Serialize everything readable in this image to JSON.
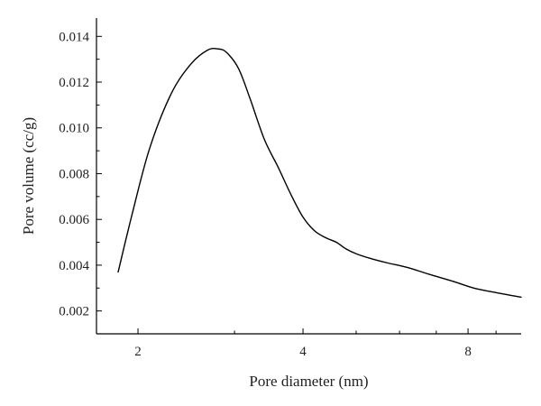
{
  "chart_data": {
    "type": "line",
    "title": "",
    "xlabel": "Pore diameter (nm)",
    "ylabel": "Pore volume (cc/g)",
    "x_scale": "log",
    "xlim": [
      1.68,
      10.0
    ],
    "ylim": [
      0.001,
      0.0148
    ],
    "x_ticks": [
      {
        "value": 2,
        "label": "2"
      },
      {
        "value": 4,
        "label": "4"
      },
      {
        "value": 8,
        "label": "8"
      }
    ],
    "y_ticks": [
      {
        "value": 0.002,
        "label": "0.002"
      },
      {
        "value": 0.004,
        "label": "0.004"
      },
      {
        "value": 0.006,
        "label": "0.006"
      },
      {
        "value": 0.008,
        "label": "0.008"
      },
      {
        "value": 0.01,
        "label": "0.010"
      },
      {
        "value": 0.012,
        "label": "0.012"
      },
      {
        "value": 0.014,
        "label": "0.014"
      }
    ],
    "grid": false,
    "legend": "none",
    "series": [
      {
        "color": "#000000",
        "x": [
          1.84,
          1.95,
          2.1,
          2.3,
          2.5,
          2.68,
          2.8,
          2.9,
          3.05,
          3.2,
          3.4,
          3.6,
          3.8,
          4.0,
          4.2,
          4.4,
          4.6,
          4.8,
          5.0,
          5.3,
          5.7,
          6.2,
          6.8,
          7.5,
          8.2,
          9.0,
          10.0
        ],
        "y": [
          0.0037,
          0.0062,
          0.0091,
          0.0115,
          0.0128,
          0.0134,
          0.01345,
          0.0133,
          0.0126,
          0.0113,
          0.0095,
          0.0083,
          0.0071,
          0.0061,
          0.0055,
          0.0052,
          0.005,
          0.0047,
          0.0045,
          0.0043,
          0.0041,
          0.0039,
          0.0036,
          0.0033,
          0.003,
          0.0028,
          0.0026
        ]
      }
    ]
  }
}
